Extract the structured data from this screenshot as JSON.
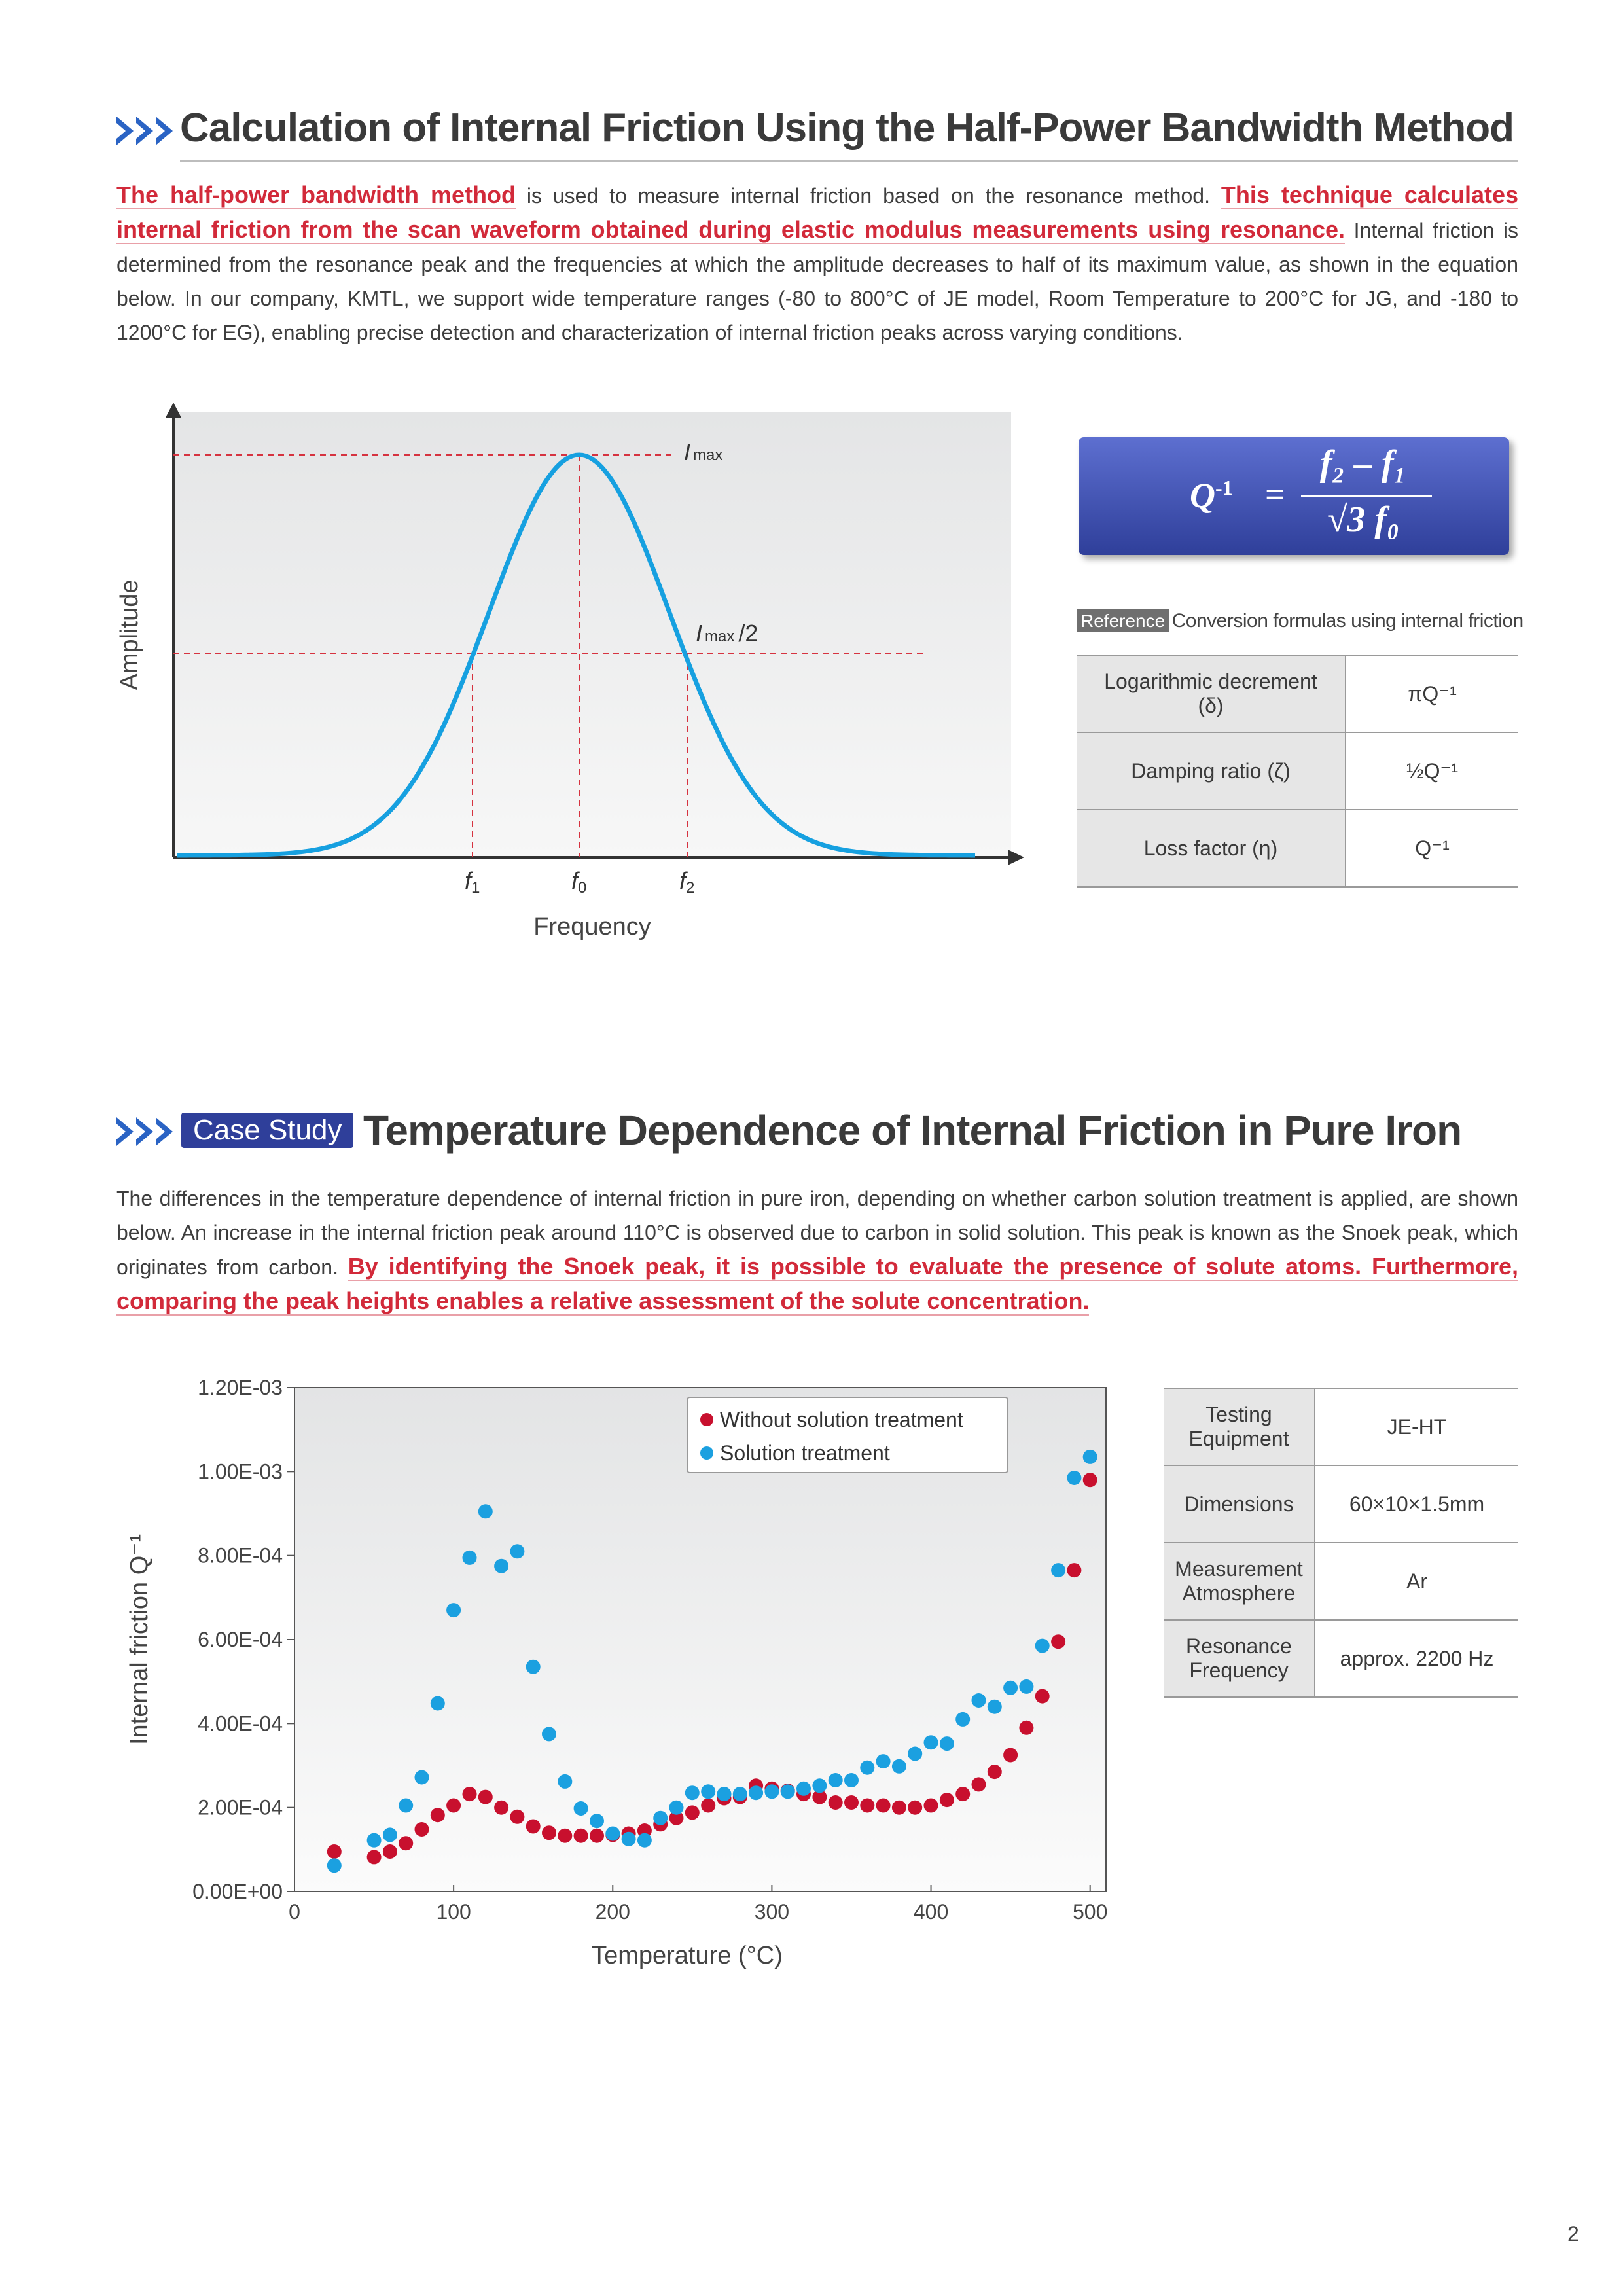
{
  "section1": {
    "title": "Calculation of Internal Friction Using the Half-Power Bandwidth Method",
    "para_hl1": "The half-power bandwidth method",
    "para_t1": " is used to measure internal friction based on the resonance method. ",
    "para_hl2": "This technique calculates internal friction from the scan waveform obtained during elastic modulus measurements using resonance.",
    "para_t2": " Internal friction is determined from the resonance peak and the frequencies at which the amplitude decreases to half of its maximum value, as shown in the equation below. In our company, KMTL, we support wide temperature ranges (-80 to 800°C of JE model, Room Temperature to 200°C for JG, and -180 to 1200°C for EG), enabling precise detection and characterization of internal friction peaks across varying conditions."
  },
  "diagram": {
    "ylabel": "Amplitude",
    "xlabel": "Frequency",
    "imax": "I",
    "imax_sub": "max",
    "imax_half": "/2",
    "f1": "f",
    "f1_sub": "1",
    "f0": "f",
    "f0_sub": "0",
    "f2": "f",
    "f2_sub": "2"
  },
  "formula": {
    "lhs": "Q",
    "lhs_sup": "-1",
    "equals": "=",
    "numerator": "f₂ – f₁",
    "denominator": "√3 f₀"
  },
  "reference": {
    "tag": "Reference",
    "caption": "Conversion formulas using internal friction",
    "rows": [
      {
        "name": "Logarithmic decrement (δ)",
        "value": "πQ⁻¹"
      },
      {
        "name": "Damping ratio (ζ)",
        "value": "½Q⁻¹"
      },
      {
        "name": "Loss factor (η)",
        "value": "Q⁻¹"
      }
    ]
  },
  "section2": {
    "badge": "Case Study",
    "title": "Temperature Dependence of Internal Friction in Pure Iron",
    "para_t1": "The differences in the temperature dependence of internal friction in pure iron, depending on whether carbon solution treatment is applied, are shown below. An increase in the internal friction peak around 110°C is observed due to carbon in solid solution. This peak is known as the Snoek peak, which originates from carbon. ",
    "para_hl1": "By identifying the Snoek peak, it is possible to evaluate the presence of solute atoms. Furthermore, comparing the peak heights enables a relative assessment of the solute concentration."
  },
  "chart_data": {
    "type": "scatter",
    "xlabel": "Temperature (°C)",
    "ylabel": "Internal friction  Q⁻¹",
    "xlim": [
      0,
      510
    ],
    "ylim": [
      0,
      0.0012
    ],
    "xticks": [
      0,
      100,
      200,
      300,
      400,
      500
    ],
    "yticks": [
      "0.00E+00",
      "2.00E-04",
      "4.00E-04",
      "6.00E-04",
      "8.00E-04",
      "1.00E-03",
      "1.20E-03"
    ],
    "legend_position": "top-right",
    "series": [
      {
        "name": "Without solution treatment",
        "color": "#c8102e",
        "x": [
          25,
          50,
          60,
          70,
          80,
          90,
          100,
          110,
          120,
          130,
          140,
          150,
          160,
          170,
          180,
          190,
          200,
          210,
          220,
          230,
          240,
          250,
          260,
          270,
          280,
          290,
          300,
          310,
          320,
          330,
          340,
          350,
          360,
          370,
          380,
          390,
          400,
          410,
          420,
          430,
          440,
          450,
          460,
          470,
          480,
          490,
          500
        ],
        "y": [
          9.5e-05,
          8.2e-05,
          9.5e-05,
          0.000115,
          0.000148,
          0.000182,
          0.000205,
          0.000232,
          0.000225,
          0.0002,
          0.000178,
          0.000155,
          0.00014,
          0.000133,
          0.000133,
          0.000133,
          0.000135,
          0.000138,
          0.000145,
          0.00016,
          0.000175,
          0.000188,
          0.000205,
          0.000222,
          0.000225,
          0.000252,
          0.000245,
          0.00024,
          0.000232,
          0.000225,
          0.000212,
          0.000212,
          0.000205,
          0.000205,
          0.0002,
          0.0002,
          0.000205,
          0.000218,
          0.000232,
          0.000255,
          0.000285,
          0.000325,
          0.00039,
          0.000465,
          0.000595,
          0.000765,
          0.00098
        ]
      },
      {
        "name": "Solution treatment",
        "color": "#1ba0e0",
        "x": [
          25,
          50,
          60,
          70,
          80,
          90,
          100,
          110,
          120,
          130,
          140,
          150,
          160,
          170,
          180,
          190,
          200,
          210,
          220,
          230,
          240,
          250,
          260,
          270,
          280,
          290,
          300,
          310,
          320,
          330,
          340,
          350,
          360,
          370,
          380,
          390,
          400,
          410,
          420,
          430,
          440,
          450,
          460,
          470,
          480,
          490,
          500
        ],
        "y": [
          6.2e-05,
          0.000122,
          0.000135,
          0.000205,
          0.000272,
          0.000448,
          0.00067,
          0.000795,
          0.000905,
          0.000775,
          0.00081,
          0.000535,
          0.000375,
          0.000262,
          0.000198,
          0.000168,
          0.000138,
          0.000125,
          0.000122,
          0.000175,
          0.0002,
          0.000235,
          0.000238,
          0.000232,
          0.000232,
          0.000235,
          0.000238,
          0.000238,
          0.000245,
          0.000252,
          0.000265,
          0.000265,
          0.000295,
          0.00031,
          0.000298,
          0.000328,
          0.000355,
          0.000352,
          0.00041,
          0.000455,
          0.00044,
          0.000485,
          0.000488,
          0.000585,
          0.000765,
          0.000985,
          0.001035
        ]
      }
    ]
  },
  "specs": {
    "rows": [
      {
        "name": "Testing Equipment",
        "value": "JE-HT"
      },
      {
        "name": "Dimensions",
        "value": "60×10×1.5mm"
      },
      {
        "name": "Measurement Atmosphere",
        "value": "Ar"
      },
      {
        "name": "Resonance Frequency",
        "value": "approx. 2200 Hz"
      }
    ]
  },
  "page_number": "2"
}
